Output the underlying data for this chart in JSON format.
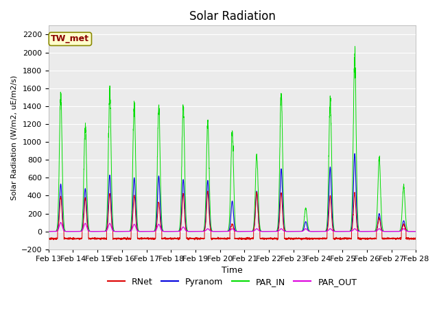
{
  "title": "Solar Radiation",
  "ylabel": "Solar Radiation (W/m2, uE/m2/s)",
  "xlabel": "Time",
  "xlim_days": [
    13,
    28
  ],
  "ylim": [
    -200,
    2300
  ],
  "yticks": [
    -200,
    0,
    200,
    400,
    600,
    800,
    1000,
    1200,
    1400,
    1600,
    1800,
    2000,
    2200
  ],
  "xtick_labels": [
    "Feb 13",
    "Feb 14",
    "Feb 15",
    "Feb 16",
    "Feb 17",
    "Feb 18",
    "Feb 19",
    "Feb 20",
    "Feb 21",
    "Feb 22",
    "Feb 23",
    "Feb 24",
    "Feb 25",
    "Feb 26",
    "Feb 27",
    "Feb 28"
  ],
  "colors": {
    "RNet": "#dd0000",
    "Pyranom": "#0000dd",
    "PAR_IN": "#00dd00",
    "PAR_OUT": "#dd00dd"
  },
  "annotation_text": "TW_met",
  "annotation_bbox": {
    "facecolor": "#ffffcc",
    "edgecolor": "#888800"
  },
  "bg_color": "#ebebeb",
  "fig_color": "#ffffff",
  "night_rnet": -80,
  "daily_peaks": {
    "PAR_IN": [
      1520,
      1170,
      1540,
      1420,
      1390,
      1390,
      1230,
      1130,
      840,
      1540,
      260,
      1490,
      2000,
      800,
      500
    ],
    "Pyranom": [
      530,
      480,
      630,
      600,
      620,
      580,
      570,
      340,
      450,
      700,
      110,
      720,
      870,
      200,
      120
    ],
    "RNet": [
      390,
      370,
      420,
      400,
      320,
      420,
      450,
      80,
      430,
      430,
      0,
      400,
      430,
      150,
      80
    ],
    "PAR_OUT": [
      100,
      90,
      90,
      80,
      80,
      50,
      30,
      30,
      30,
      30,
      30,
      30,
      30,
      30,
      30
    ]
  }
}
